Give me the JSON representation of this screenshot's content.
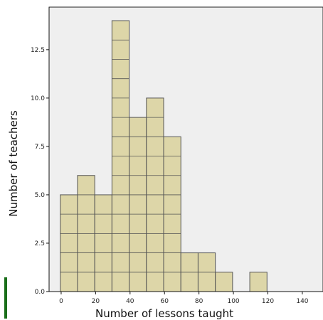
{
  "chart_data": {
    "type": "bar",
    "xlabel": "Number of lessons taught",
    "ylabel": "Number of teachers",
    "bin_width": 10,
    "bins": [
      {
        "start": 0,
        "end": 10,
        "count": 5
      },
      {
        "start": 10,
        "end": 20,
        "count": 6
      },
      {
        "start": 20,
        "end": 30,
        "count": 5
      },
      {
        "start": 30,
        "end": 40,
        "count": 14
      },
      {
        "start": 40,
        "end": 50,
        "count": 9
      },
      {
        "start": 50,
        "end": 60,
        "count": 10
      },
      {
        "start": 60,
        "end": 70,
        "count": 8
      },
      {
        "start": 70,
        "end": 80,
        "count": 2
      },
      {
        "start": 80,
        "end": 90,
        "count": 2
      },
      {
        "start": 90,
        "end": 100,
        "count": 1
      },
      {
        "start": 100,
        "end": 110,
        "count": 0
      },
      {
        "start": 110,
        "end": 120,
        "count": 1
      }
    ],
    "xlim": [
      -7,
      152
    ],
    "ylim": [
      0,
      14.7
    ],
    "xticks": [
      0,
      20,
      40,
      60,
      80,
      100,
      120,
      140
    ],
    "yticks": [
      0,
      2.5,
      5,
      7.5,
      10,
      12.5
    ],
    "xtick_labels": [
      "0",
      "20",
      "40",
      "60",
      "80",
      "100",
      "120",
      "140"
    ],
    "ytick_labels": [
      "0.0",
      "2.5",
      "5.0",
      "7.5",
      "10.0",
      "12.5"
    ],
    "grid": false,
    "legend": "none",
    "colors": {
      "bar_fill": "#ddd6a8",
      "bar_stroke": "#555555",
      "plot_background": "#efefef",
      "marker": "#1a6e1a"
    }
  }
}
